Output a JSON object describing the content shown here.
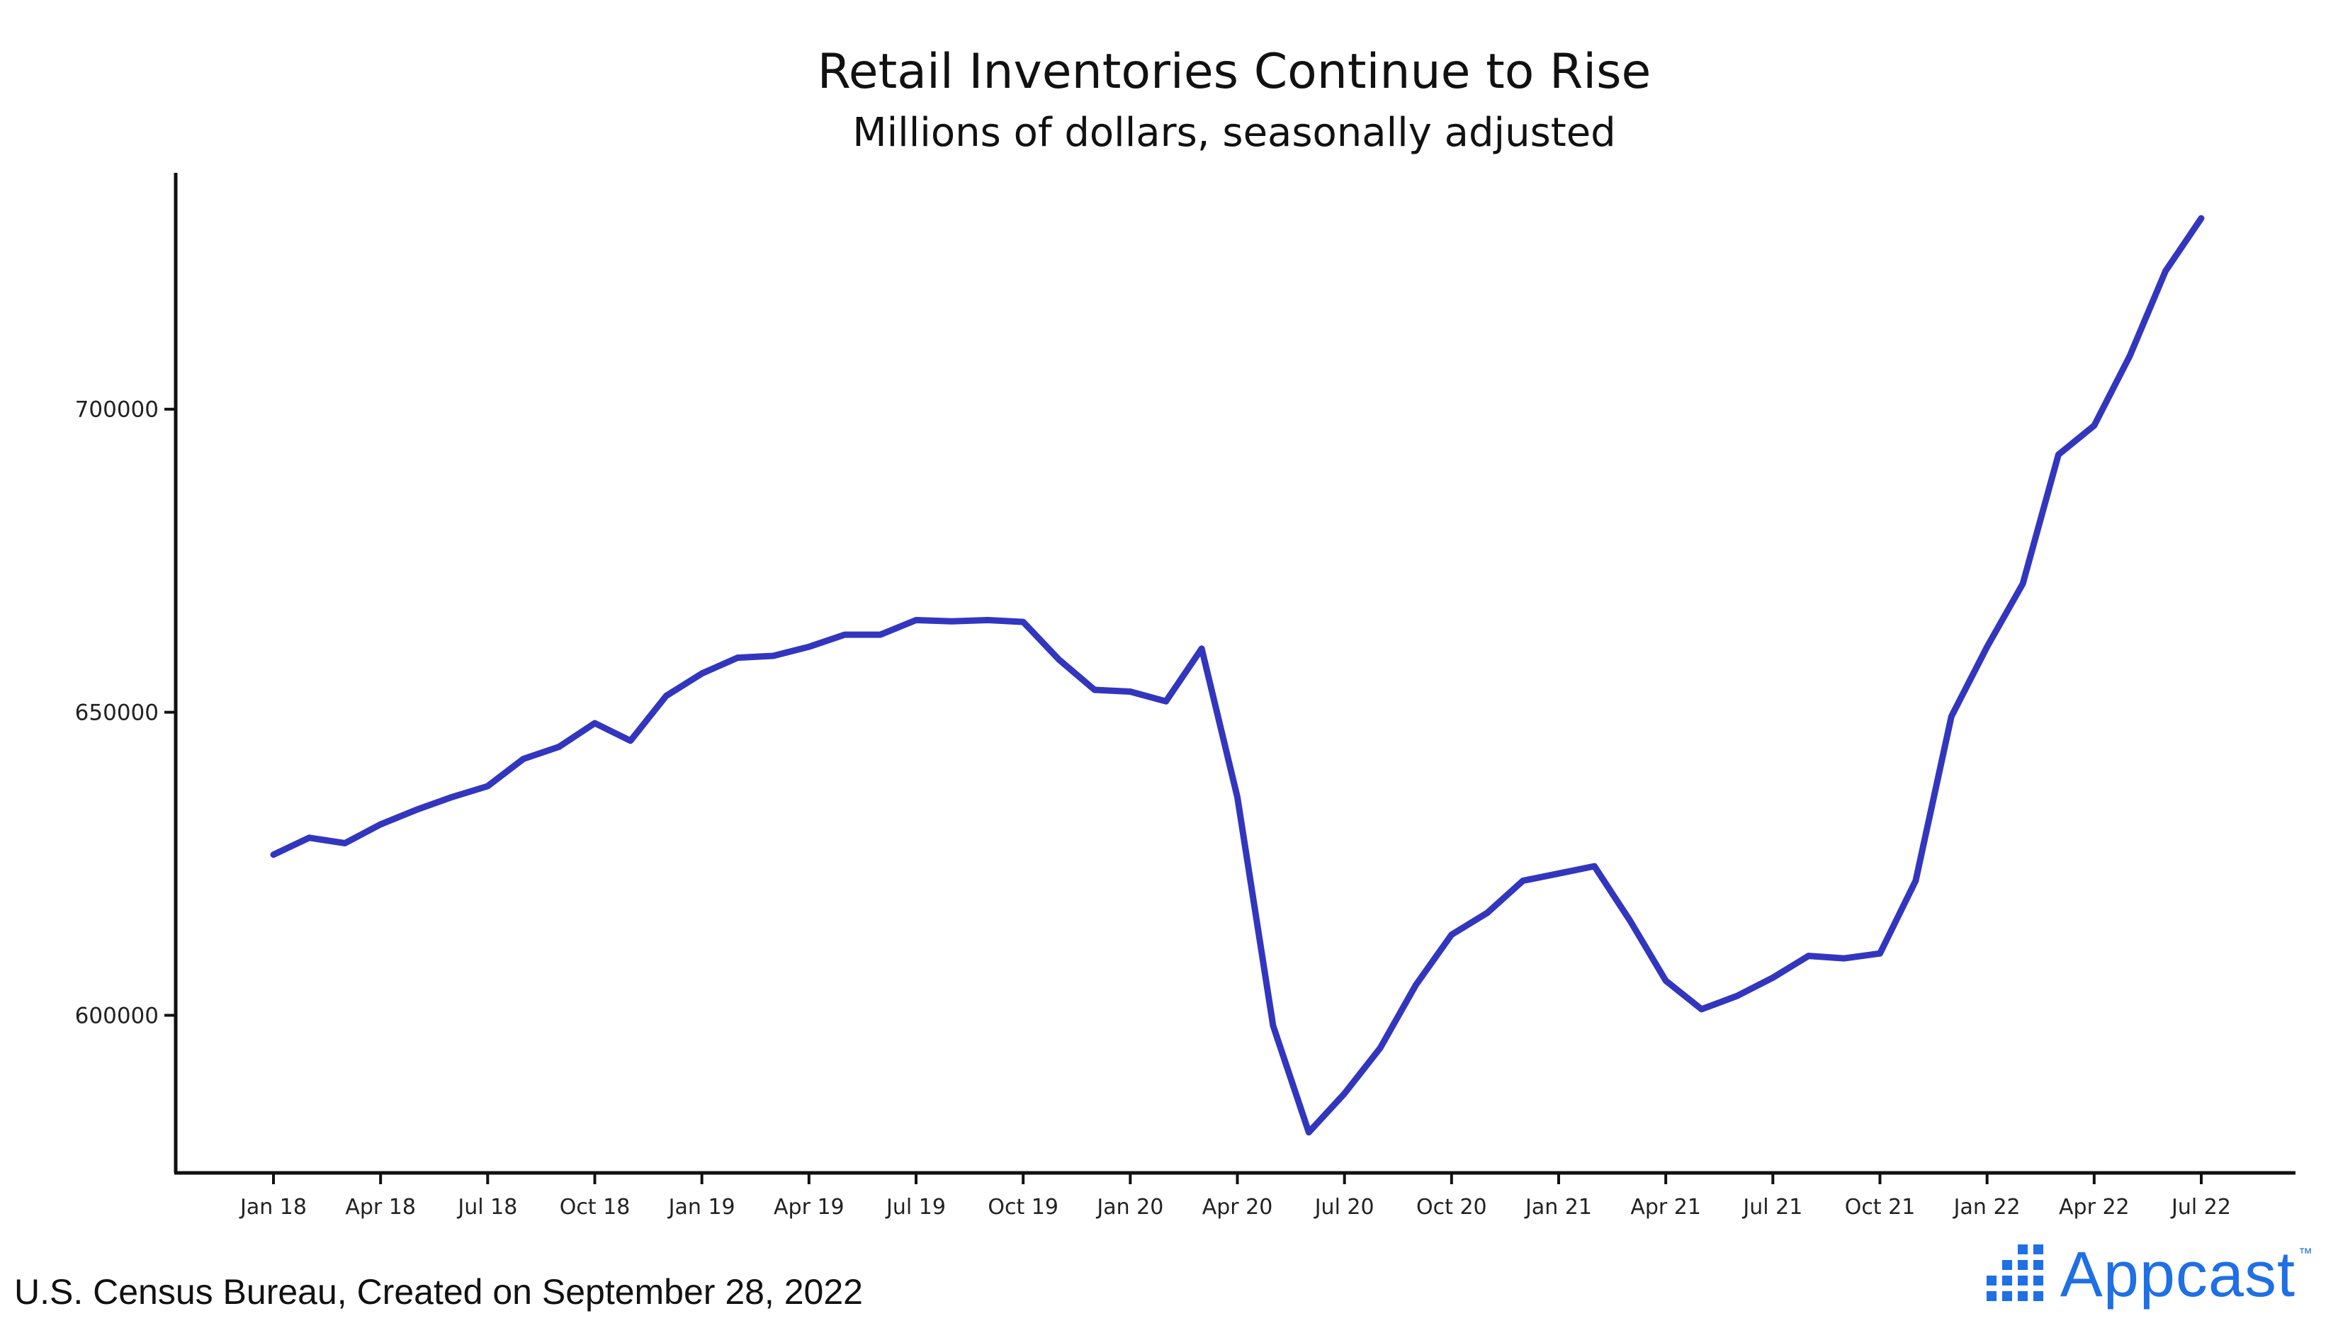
{
  "chart_data": {
    "type": "line",
    "title": "Retail Inventories Continue to Rise",
    "subtitle": "Millions of dollars, seasonally adjusted",
    "xlabel": "",
    "ylabel": "",
    "x_tick_labels": [
      "Jan 18",
      "Apr 18",
      "Jul 18",
      "Oct 18",
      "Jan 19",
      "Apr 19",
      "Jul 19",
      "Oct 19",
      "Jan 20",
      "Apr 20",
      "Jul 20",
      "Oct 20",
      "Jan 21",
      "Apr 21",
      "Jul 21",
      "Oct 21",
      "Jan 22",
      "Apr 22",
      "Jul 22"
    ],
    "y_ticks": [
      600000,
      650000,
      700000
    ],
    "y_tick_labels": [
      "600000",
      "650000",
      "700000"
    ],
    "ylim": [
      574000,
      739000
    ],
    "grid": false,
    "legend": "none",
    "series": [
      {
        "color": "#3236bf",
        "x": [
          "2018-01",
          "2018-02",
          "2018-03",
          "2018-04",
          "2018-05",
          "2018-06",
          "2018-07",
          "2018-08",
          "2018-09",
          "2018-10",
          "2018-11",
          "2018-12",
          "2019-01",
          "2019-02",
          "2019-03",
          "2019-04",
          "2019-05",
          "2019-06",
          "2019-07",
          "2019-08",
          "2019-09",
          "2019-10",
          "2019-11",
          "2019-12",
          "2020-01",
          "2020-02",
          "2020-03",
          "2020-04",
          "2020-05",
          "2020-06",
          "2020-07",
          "2020-08",
          "2020-09",
          "2020-10",
          "2020-11",
          "2020-12",
          "2021-01",
          "2021-02",
          "2021-03",
          "2021-04",
          "2021-05",
          "2021-06",
          "2021-07",
          "2021-08",
          "2021-09",
          "2021-10",
          "2021-11",
          "2021-12",
          "2022-01",
          "2022-02",
          "2022-03",
          "2022-04",
          "2022-05",
          "2022-06",
          "2022-07"
        ],
        "values": [
          626500,
          629300,
          628400,
          631500,
          633900,
          636000,
          637800,
          642300,
          644300,
          648200,
          645300,
          652700,
          656400,
          659000,
          659300,
          660800,
          662800,
          662800,
          665200,
          665000,
          665200,
          664900,
          658700,
          653700,
          653400,
          651800,
          660500,
          636000,
          598300,
          580700,
          587100,
          594600,
          605000,
          613300,
          616900,
          622200,
          623400,
          624600,
          615600,
          605700,
          601000,
          603200,
          606200,
          609800,
          609400,
          610200,
          622200,
          649300,
          660800,
          671200,
          692500,
          697300,
          708800,
          722800,
          731500
        ]
      }
    ]
  },
  "footer": {
    "source": "U.S. Census Bureau, Created on September 28, 2022",
    "brand": "Appcast",
    "brand_mark": "™"
  },
  "colors": {
    "line": "#3236bf",
    "brand": "#1f6fe5",
    "axis": "#111111"
  }
}
